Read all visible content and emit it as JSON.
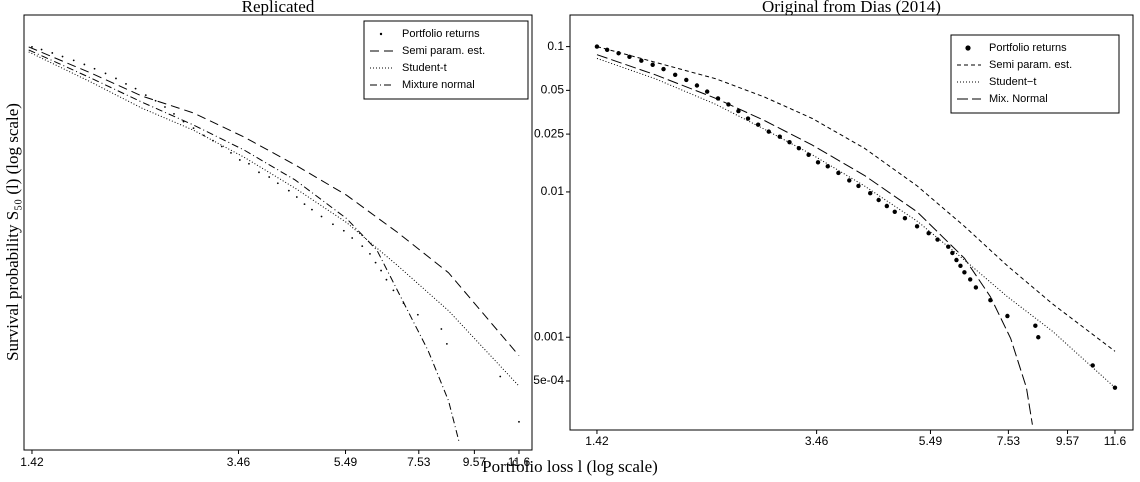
{
  "chart_data": [
    {
      "type": "line",
      "title": "Replicated",
      "xscale": "log",
      "yscale": "log",
      "legend": "upper right",
      "xlim": [
        1.372,
        12.27
      ],
      "ylim": [
        0.00018,
        0.165
      ],
      "xticks": [
        1.42,
        3.46,
        5.49,
        7.53,
        9.57,
        11.6
      ],
      "series": [
        {
          "name": "Portfolio returns",
          "style": "points",
          "color": "#000000",
          "x": [
            1.42,
            1.48,
            1.55,
            1.62,
            1.7,
            1.78,
            1.86,
            1.95,
            2.04,
            2.13,
            2.22,
            2.32,
            2.42,
            2.52,
            2.62,
            2.73,
            2.85,
            2.98,
            3.1,
            3.22,
            3.35,
            3.48,
            3.62,
            3.78,
            3.95,
            4.1,
            4.3,
            4.45,
            4.6,
            4.75,
            4.95,
            5.2,
            5.45,
            5.65,
            5.9,
            6.1,
            6.25,
            6.4,
            6.55,
            6.75,
            7.05,
            7.5,
            8.3,
            8.5,
            10.7,
            11.6
          ],
          "values": [
            0.1,
            0.096,
            0.091,
            0.086,
            0.081,
            0.076,
            0.071,
            0.066,
            0.061,
            0.056,
            0.052,
            0.047,
            0.043,
            0.039,
            0.035,
            0.031,
            0.028,
            0.025,
            0.023,
            0.021,
            0.019,
            0.017,
            0.016,
            0.014,
            0.013,
            0.0118,
            0.0105,
            0.0095,
            0.0085,
            0.0078,
            0.007,
            0.0062,
            0.0056,
            0.005,
            0.0044,
            0.0039,
            0.0034,
            0.003,
            0.0026,
            0.0022,
            0.0018,
            0.0015,
            0.0012,
            0.00095,
            0.00057,
            0.00028
          ]
        },
        {
          "name": "Semi param. est.",
          "style": "dashed",
          "color": "#000000",
          "x": [
            1.4,
            1.83,
            2.28,
            2.85,
            3.55,
            4.42,
            5.51,
            6.87,
            8.56,
            11.6
          ],
          "values": [
            0.1,
            0.0665,
            0.0463,
            0.0355,
            0.0243,
            0.0157,
            0.0098,
            0.00546,
            0.0029,
            0.00079
          ]
        },
        {
          "name": "Student-t",
          "style": "dotted",
          "color": "#000000",
          "x": [
            1.4,
            1.83,
            2.28,
            2.85,
            3.55,
            4.42,
            5.51,
            6.87,
            8.56,
            11.6
          ],
          "values": [
            0.0925,
            0.0577,
            0.0383,
            0.0271,
            0.0177,
            0.0109,
            0.00638,
            0.00325,
            0.0016,
            0.00049
          ]
        },
        {
          "name": "Mixture normal",
          "style": "dashdot",
          "color": "#000000",
          "x": [
            1.4,
            1.83,
            2.28,
            2.85,
            3.55,
            4.42,
            5.51,
            6.29,
            6.87,
            7.84,
            8.56,
            8.95
          ],
          "values": [
            0.0954,
            0.0614,
            0.0421,
            0.0294,
            0.0198,
            0.0124,
            0.0068,
            0.00411,
            0.00219,
            0.000855,
            0.00039,
            0.000208
          ]
        }
      ]
    },
    {
      "type": "line",
      "title": "Original from Dias (2014)",
      "xscale": "log",
      "yscale": "log",
      "legend": "upper right",
      "xlim": [
        1.273,
        12.48
      ],
      "ylim": [
        0.00023,
        0.165
      ],
      "xticks": [
        1.42,
        3.46,
        5.49,
        7.53,
        9.57,
        11.6
      ],
      "yticks": [
        0.1,
        0.05,
        0.025,
        0.01,
        0.001,
        {
          "value": 0.0005,
          "label": "5e-04"
        }
      ],
      "series": [
        {
          "name": "Portfolio returns",
          "style": "points",
          "color": "#000000",
          "x": [
            1.42,
            1.48,
            1.55,
            1.62,
            1.7,
            1.78,
            1.86,
            1.95,
            2.04,
            2.13,
            2.22,
            2.32,
            2.42,
            2.52,
            2.62,
            2.73,
            2.85,
            2.98,
            3.1,
            3.22,
            3.35,
            3.48,
            3.62,
            3.78,
            3.95,
            4.1,
            4.3,
            4.45,
            4.6,
            4.75,
            4.95,
            5.2,
            5.45,
            5.65,
            5.9,
            6.0,
            6.1,
            6.2,
            6.3,
            6.45,
            6.6,
            7.0,
            7.5,
            8.4,
            8.5,
            10.6,
            11.6
          ],
          "values": [
            0.1,
            0.095,
            0.09,
            0.085,
            0.08,
            0.075,
            0.07,
            0.064,
            0.059,
            0.054,
            0.049,
            0.044,
            0.04,
            0.036,
            0.032,
            0.029,
            0.026,
            0.024,
            0.022,
            0.02,
            0.018,
            0.016,
            0.015,
            0.0135,
            0.012,
            0.011,
            0.0098,
            0.0088,
            0.008,
            0.0073,
            0.0066,
            0.0058,
            0.0052,
            0.0047,
            0.0042,
            0.0038,
            0.0034,
            0.0031,
            0.0028,
            0.0025,
            0.0022,
            0.0018,
            0.0014,
            0.0012,
            0.001,
            0.00064,
            0.00045
          ]
        },
        {
          "name": "Semi param. est.",
          "style": "dashed",
          "color": "#000000",
          "x": [
            1.42,
            1.8,
            2.3,
            2.8,
            3.4,
            4.2,
            5.2,
            6.3,
            7.5,
            9.0,
            11.6
          ],
          "values": [
            0.1,
            0.078,
            0.06,
            0.045,
            0.032,
            0.02,
            0.011,
            0.0058,
            0.0031,
            0.0017,
            0.0008
          ]
        },
        {
          "name": "Student−t",
          "style": "dotted",
          "color": "#000000",
          "x": [
            1.42,
            1.8,
            2.3,
            2.8,
            3.4,
            4.2,
            5.2,
            6.3,
            7.5,
            9.0,
            11.6
          ],
          "values": [
            0.083,
            0.06,
            0.04,
            0.027,
            0.018,
            0.011,
            0.0063,
            0.0034,
            0.0019,
            0.0011,
            0.00045
          ]
        },
        {
          "name": "Mix. Normal",
          "style": "longdash",
          "color": "#000000",
          "x": [
            1.42,
            1.8,
            2.3,
            2.8,
            3.4,
            4.2,
            5.2,
            6.3,
            7.0,
            7.6,
            8.1,
            8.3
          ],
          "values": [
            0.088,
            0.064,
            0.044,
            0.031,
            0.021,
            0.013,
            0.0073,
            0.0035,
            0.0019,
            0.00098,
            0.00045,
            0.00025
          ]
        }
      ]
    }
  ],
  "xlabel": "Portfolio loss l (log scale)",
  "ylabel": "Survival probability S₅₀ (l) (log scale)"
}
